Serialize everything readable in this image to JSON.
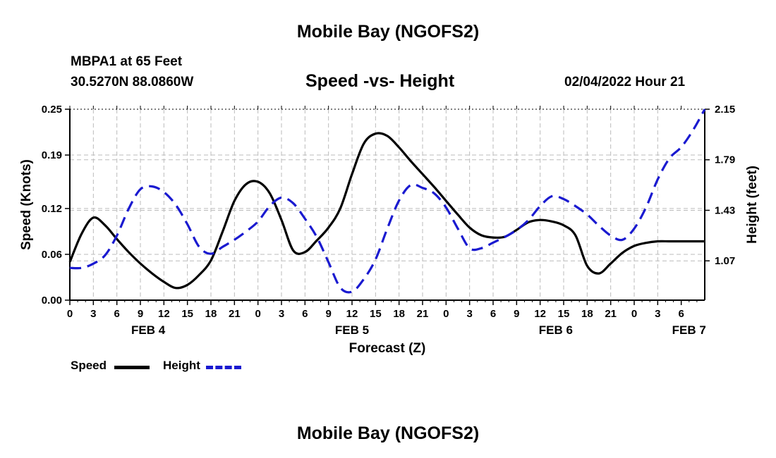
{
  "header": {
    "title": "Mobile Bay (NGOFS2)",
    "station": "MBPA1 at 65 Feet",
    "coords": "30.5270N  88.0860W",
    "subtitle": "Speed -vs- Height",
    "timestamp": "02/04/2022 Hour 21"
  },
  "footer": {
    "title": "Mobile Bay (NGOFS2)"
  },
  "legend": {
    "speed_label": "Speed",
    "height_label": "Height"
  },
  "colors": {
    "speed": "#000000",
    "height": "#1a1ad0",
    "grid": "#bbbbbb"
  },
  "chart_data": {
    "type": "line",
    "title": "Speed -vs- Height",
    "xlabel": "Forecast (Z)",
    "ylabel": "Speed (Knots)",
    "y2label": "Height (feet)",
    "x_range": [
      0,
      81
    ],
    "ylim": [
      0.0,
      0.25
    ],
    "y2lim": [
      0.79,
      2.15
    ],
    "yticks": [
      "0.00",
      "0.06",
      "0.12",
      "0.19",
      "0.25"
    ],
    "y2ticks": [
      "1.07",
      "1.43",
      "1.79",
      "2.15"
    ],
    "x_tick_labels": [
      "0",
      "3",
      "6",
      "9",
      "12",
      "15",
      "18",
      "21",
      "0",
      "3",
      "6",
      "9",
      "12",
      "15",
      "18",
      "21",
      "0",
      "3",
      "6",
      "9",
      "12",
      "15",
      "18",
      "21",
      "0",
      "3",
      "6"
    ],
    "day_labels": [
      {
        "label": "FEB 4",
        "hour": 10
      },
      {
        "label": "FEB 5",
        "hour": 36
      },
      {
        "label": "FEB 6",
        "hour": 62
      },
      {
        "label": "FEB 7",
        "hour": 79
      }
    ],
    "grid": true,
    "legend": "bottom-left",
    "series": [
      {
        "name": "Speed",
        "axis": "left",
        "x": [
          0,
          1.5,
          3,
          4.5,
          6,
          7.5,
          9,
          10.5,
          12,
          13.5,
          15,
          16.5,
          18,
          19.5,
          21,
          22.5,
          24,
          25.5,
          27,
          28.5,
          30,
          31.5,
          33,
          34.5,
          36,
          37.5,
          39,
          40.5,
          42,
          43.5,
          45,
          46.5,
          48,
          49.5,
          51,
          52.5,
          54,
          55.5,
          57,
          58.5,
          60,
          61.5,
          63,
          64.5,
          66,
          67.5,
          69,
          70.5,
          72,
          73.5,
          75,
          76.5,
          78,
          79.5,
          81
        ],
        "values": [
          0.05,
          0.087,
          0.108,
          0.098,
          0.08,
          0.063,
          0.048,
          0.035,
          0.024,
          0.016,
          0.02,
          0.033,
          0.052,
          0.09,
          0.13,
          0.152,
          0.155,
          0.14,
          0.105,
          0.065,
          0.063,
          0.078,
          0.095,
          0.12,
          0.165,
          0.205,
          0.218,
          0.215,
          0.2,
          0.182,
          0.165,
          0.148,
          0.13,
          0.112,
          0.095,
          0.085,
          0.082,
          0.083,
          0.092,
          0.102,
          0.105,
          0.103,
          0.098,
          0.085,
          0.045,
          0.035,
          0.048,
          0.062,
          0.071,
          0.075,
          0.077,
          0.077,
          0.077,
          0.077,
          0.077
        ]
      },
      {
        "name": "Height",
        "axis": "right",
        "x": [
          0,
          1.5,
          3,
          4.5,
          6,
          7.5,
          9,
          10.5,
          12,
          13.5,
          15,
          16.5,
          18,
          19.5,
          21,
          22.5,
          24,
          25.5,
          27,
          28.5,
          30,
          31.5,
          33,
          34.5,
          36,
          37.5,
          39,
          40.5,
          42,
          43.5,
          45,
          46.5,
          48,
          49.5,
          51,
          52.5,
          54,
          55.5,
          57,
          58.5,
          60,
          61.5,
          63,
          64.5,
          66,
          67.5,
          69,
          70.5,
          72,
          73.5,
          75,
          76.5,
          78,
          79.5,
          81
        ],
        "values": [
          1.02,
          1.02,
          1.05,
          1.11,
          1.25,
          1.44,
          1.58,
          1.6,
          1.56,
          1.47,
          1.33,
          1.17,
          1.12,
          1.17,
          1.22,
          1.28,
          1.35,
          1.46,
          1.52,
          1.48,
          1.37,
          1.24,
          1.06,
          0.88,
          0.85,
          0.94,
          1.08,
          1.3,
          1.5,
          1.61,
          1.59,
          1.55,
          1.45,
          1.3,
          1.16,
          1.16,
          1.2,
          1.24,
          1.29,
          1.36,
          1.46,
          1.53,
          1.51,
          1.46,
          1.4,
          1.32,
          1.25,
          1.22,
          1.3,
          1.45,
          1.65,
          1.8,
          1.88,
          2.0,
          2.15
        ]
      }
    ]
  }
}
